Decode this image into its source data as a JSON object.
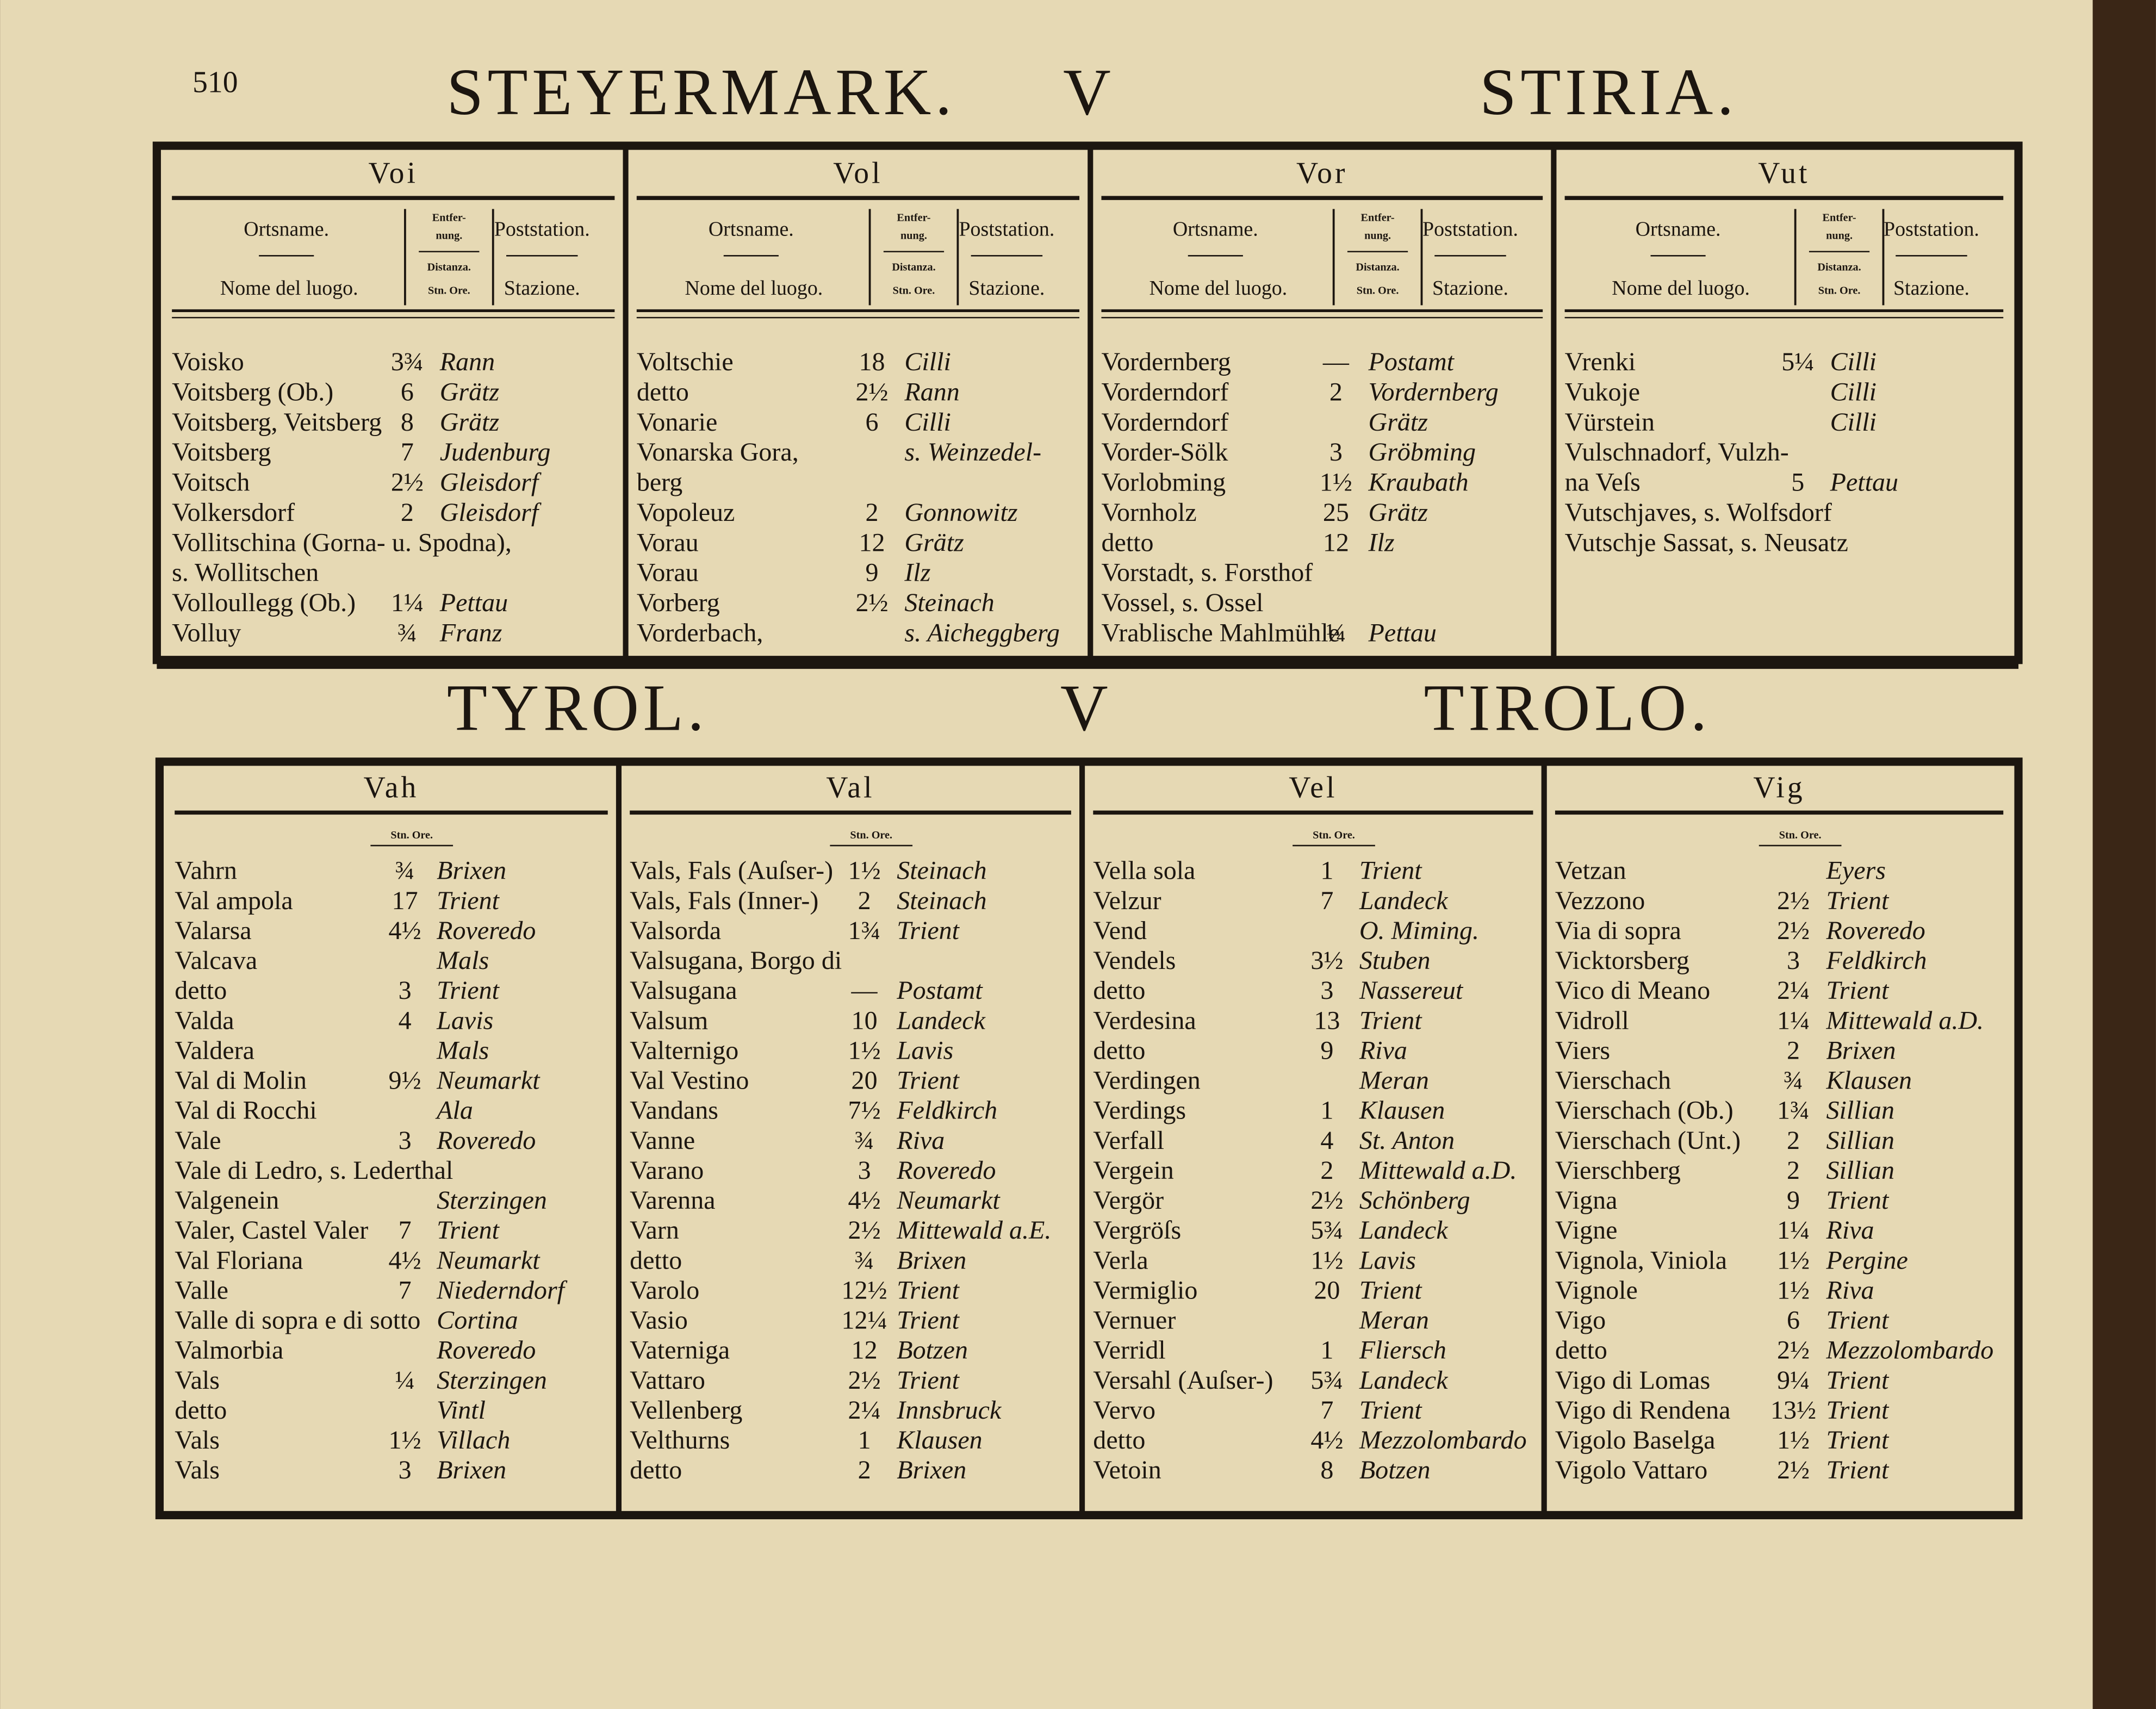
{
  "page_number": "510",
  "top": {
    "title": {
      "left": "STEYERMARK.",
      "middle": "V",
      "right": "STIRIA."
    },
    "headers": {
      "name_de": "Ortsname.",
      "name_it": "Nome del luogo.",
      "dist_de": [
        "Entfer-",
        "nung."
      ],
      "dist_it": "Distanza.",
      "units": "Stn. Ore.",
      "station_de": "Poststation.",
      "station_it": "Stazione."
    },
    "columns": [
      {
        "label": "Voi",
        "rows": [
          {
            "name": "Voisko",
            "dist": "3¾",
            "station": "Rann"
          },
          {
            "name": "Voitsberg (Ob.)",
            "dist": "6",
            "station": "Grätz"
          },
          {
            "name": "Voitsberg, Veitsberg",
            "dist": "8",
            "station": "Grätz"
          },
          {
            "name": "Voitsberg",
            "dist": "7",
            "station": "Judenburg"
          },
          {
            "name": "Voitsch",
            "dist": "2½",
            "station": "Gleisdorf"
          },
          {
            "name": "Volkersdorf",
            "dist": "2",
            "station": "Gleisdorf"
          },
          {
            "name": "Vollitschina (Gorna- u. Spodna),"
          },
          {
            "note": "s. Wollitschen"
          },
          {
            "name": "Volloullegg (Ob.)",
            "dist": "1¼",
            "station": "Pettau"
          },
          {
            "name": "Volluy",
            "dist": "¾",
            "station": "Franz"
          }
        ]
      },
      {
        "label": "Vol",
        "rows": [
          {
            "name": "Voltschie",
            "dist": "18",
            "station": "Cilli"
          },
          {
            "name": "detto",
            "dist": "2½",
            "station": "Rann"
          },
          {
            "name": "Vonarie",
            "dist": "6",
            "station": "Cilli"
          },
          {
            "name": "Vonarska Gora,",
            "station": "s. Weinzedel-"
          },
          {
            "name": "berg"
          },
          {
            "name": "Vopoleuz",
            "dist": "2",
            "station": "Gonnowitz"
          },
          {
            "name": "Vorau",
            "dist": "12",
            "station": "Grätz"
          },
          {
            "name": "Vorau",
            "dist": "9",
            "station": "Ilz"
          },
          {
            "name": "Vorberg",
            "dist": "2½",
            "station": "Steinach"
          },
          {
            "name": "Vorderbach,",
            "station": "s. Aicheggberg"
          }
        ]
      },
      {
        "label": "Vor",
        "rows": [
          {
            "name": "Vordernberg",
            "dist": "—",
            "station": "Postamt"
          },
          {
            "name": "Vorderndorf",
            "dist": "2",
            "station": "Vordernberg"
          },
          {
            "name": "Vorderndorf",
            "station": "Grätz"
          },
          {
            "name": "Vorder-Sölk",
            "dist": "3",
            "station": "Gröbming"
          },
          {
            "name": "Vorlobming",
            "dist": "1½",
            "station": "Kraubath"
          },
          {
            "name": "Vornholz",
            "dist": "25",
            "station": "Grätz"
          },
          {
            "name": "detto",
            "dist": "12",
            "station": "Ilz"
          },
          {
            "note": "Vorstadt, s. Forsthof"
          },
          {
            "note": "Vossel, s. Ossel"
          },
          {
            "name": "Vrablische Mahlmühle",
            "dist": "¼",
            "station": "Pettau"
          }
        ]
      },
      {
        "label": "Vut",
        "rows": [
          {
            "name": "Vrenki",
            "dist": "5¼",
            "station": "Cilli"
          },
          {
            "name": "Vukoje",
            "station": "Cilli"
          },
          {
            "name": "Vürstein",
            "station": "Cilli"
          },
          {
            "name": "Vulschnadorf, Vulzh-"
          },
          {
            "name": "na Veſs",
            "dist": "5",
            "station": "Pettau"
          },
          {
            "note": "Vutschjaves, s. Wolfsdorf"
          },
          {
            "note": "Vutschje Sassat, s. Neusatz"
          }
        ]
      }
    ]
  },
  "bottom": {
    "title": {
      "left": "TYROL.",
      "middle": "V",
      "right": "TIROLO."
    },
    "headers": {
      "units": "Stn. Ore."
    },
    "columns": [
      {
        "label": "Vah",
        "rows": [
          {
            "name": "Vahrn",
            "dist": "¾",
            "station": "Brixen"
          },
          {
            "name": "Val ampola",
            "dist": "17",
            "station": "Trient"
          },
          {
            "name": "Valarsa",
            "dist": "4½",
            "station": "Roveredo"
          },
          {
            "name": "Valcava",
            "station": "Mals"
          },
          {
            "name": "detto",
            "dist": "3",
            "station": "Trient"
          },
          {
            "name": "Valda",
            "dist": "4",
            "station": "Lavis"
          },
          {
            "name": "Valdera",
            "station": "Mals"
          },
          {
            "name": "Val di Molin",
            "dist": "9½",
            "station": "Neumarkt"
          },
          {
            "name": "Val di Rocchi",
            "station": "Ala"
          },
          {
            "name": "Vale",
            "dist": "3",
            "station": "Roveredo"
          },
          {
            "note": "Vale di Ledro, s. Lederthal"
          },
          {
            "name": "Valgenein",
            "station": "Sterzingen"
          },
          {
            "name": "Valer, Castel Valer",
            "dist": "7",
            "station": "Trient"
          },
          {
            "name": "Val Floriana",
            "dist": "4½",
            "station": "Neumarkt"
          },
          {
            "name": "Valle",
            "dist": "7",
            "station": "Niederndorf"
          },
          {
            "name": "Valle di sopra e di sotto",
            "station": "Cortina"
          },
          {
            "name": "Valmorbia",
            "station": "Roveredo"
          },
          {
            "name": "Vals",
            "dist": "¼",
            "station": "Sterzingen"
          },
          {
            "name": "detto",
            "station": "Vintl"
          },
          {
            "name": "Vals",
            "dist": "1½",
            "station": "Villach"
          },
          {
            "name": "Vals",
            "dist": "3",
            "station": "Brixen"
          }
        ]
      },
      {
        "label": "Val",
        "rows": [
          {
            "name": "Vals, Fals (Auſser-)",
            "dist": "1½",
            "station": "Steinach"
          },
          {
            "name": "Vals, Fals (Inner-)",
            "dist": "2",
            "station": "Steinach"
          },
          {
            "name": "Valsorda",
            "dist": "1¾",
            "station": "Trient"
          },
          {
            "name": "Valsugana, Borgo di"
          },
          {
            "name": "Valsugana",
            "dist": "—",
            "station": "Postamt"
          },
          {
            "name": "Valsum",
            "dist": "10",
            "station": "Landeck"
          },
          {
            "name": "Valternigo",
            "dist": "1½",
            "station": "Lavis"
          },
          {
            "name": "Val Vestino",
            "dist": "20",
            "station": "Trient"
          },
          {
            "name": "Vandans",
            "dist": "7½",
            "station": "Feldkirch"
          },
          {
            "name": "Vanne",
            "dist": "¾",
            "station": "Riva"
          },
          {
            "name": "Varano",
            "dist": "3",
            "station": "Roveredo"
          },
          {
            "name": "Varenna",
            "dist": "4½",
            "station": "Neumarkt"
          },
          {
            "name": "Varn",
            "dist": "2½",
            "station": "Mittewald a.E."
          },
          {
            "name": "detto",
            "dist": "¾",
            "station": "Brixen"
          },
          {
            "name": "Varolo",
            "dist": "12½",
            "station": "Trient"
          },
          {
            "name": "Vasio",
            "dist": "12¼",
            "station": "Trient"
          },
          {
            "name": "Vaterniga",
            "dist": "12",
            "station": "Botzen"
          },
          {
            "name": "Vattaro",
            "dist": "2½",
            "station": "Trient"
          },
          {
            "name": "Vellenberg",
            "dist": "2¼",
            "station": "Innsbruck"
          },
          {
            "name": "Velthurns",
            "dist": "1",
            "station": "Klausen"
          },
          {
            "name": "detto",
            "dist": "2",
            "station": "Brixen"
          }
        ]
      },
      {
        "label": "Vel",
        "rows": [
          {
            "name": "Vella sola",
            "dist": "1",
            "station": "Trient"
          },
          {
            "name": "Velzur",
            "dist": "7",
            "station": "Landeck"
          },
          {
            "name": "Vend",
            "station": "O. Miming."
          },
          {
            "name": "Vendels",
            "dist": "3½",
            "station": "Stuben"
          },
          {
            "name": "detto",
            "dist": "3",
            "station": "Nassereut"
          },
          {
            "name": "Verdesina",
            "dist": "13",
            "station": "Trient"
          },
          {
            "name": "detto",
            "dist": "9",
            "station": "Riva"
          },
          {
            "name": "Verdingen",
            "station": "Meran"
          },
          {
            "name": "Verdings",
            "dist": "1",
            "station": "Klausen"
          },
          {
            "name": "Verfall",
            "dist": "4",
            "station": "St. Anton"
          },
          {
            "name": "Vergein",
            "dist": "2",
            "station": "Mittewald a.D."
          },
          {
            "name": "Vergör",
            "dist": "2½",
            "station": "Schönberg"
          },
          {
            "name": "Vergröſs",
            "dist": "5¾",
            "station": "Landeck"
          },
          {
            "name": "Verla",
            "dist": "1½",
            "station": "Lavis"
          },
          {
            "name": "Vermiglio",
            "dist": "20",
            "station": "Trient"
          },
          {
            "name": "Vernuer",
            "station": "Meran"
          },
          {
            "name": "Verridl",
            "dist": "1",
            "station": "Fliersch"
          },
          {
            "name": "Versahl (Auſser-)",
            "dist": "5¾",
            "station": "Landeck"
          },
          {
            "name": "Vervo",
            "dist": "7",
            "station": "Trient"
          },
          {
            "name": "detto",
            "dist": "4½",
            "station": "Mezzolombardo"
          },
          {
            "name": "Vetoin",
            "dist": "8",
            "station": "Botzen"
          }
        ]
      },
      {
        "label": "Vig",
        "rows": [
          {
            "name": "Vetzan",
            "station": "Eyers"
          },
          {
            "name": "Vezzono",
            "dist": "2½",
            "station": "Trient"
          },
          {
            "name": "Via di sopra",
            "dist": "2½",
            "station": "Roveredo"
          },
          {
            "name": "Vicktorsberg",
            "dist": "3",
            "station": "Feldkirch"
          },
          {
            "name": "Vico di Meano",
            "dist": "2¼",
            "station": "Trient"
          },
          {
            "name": "Vidroll",
            "dist": "1¼",
            "station": "Mittewald a.D."
          },
          {
            "name": "Viers",
            "dist": "2",
            "station": "Brixen"
          },
          {
            "name": "Vierschach",
            "dist": "¾",
            "station": "Klausen"
          },
          {
            "name": "Vierschach (Ob.)",
            "dist": "1¾",
            "station": "Sillian"
          },
          {
            "name": "Vierschach (Unt.)",
            "dist": "2",
            "station": "Sillian"
          },
          {
            "name": "Vierschberg",
            "dist": "2",
            "station": "Sillian"
          },
          {
            "name": "Vigna",
            "dist": "9",
            "station": "Trient"
          },
          {
            "name": "Vigne",
            "dist": "1¼",
            "station": "Riva"
          },
          {
            "name": "Vignola, Viniola",
            "dist": "1½",
            "station": "Pergine"
          },
          {
            "name": "Vignole",
            "dist": "1½",
            "station": "Riva"
          },
          {
            "name": "Vigo",
            "dist": "6",
            "station": "Trient"
          },
          {
            "name": "detto",
            "dist": "2½",
            "station": "Mezzolombardo"
          },
          {
            "name": "Vigo di Lomas",
            "dist": "9¼",
            "station": "Trient"
          },
          {
            "name": "Vigo di Rendena",
            "dist": "13½",
            "station": "Trient"
          },
          {
            "name": "Vigolo Baselga",
            "dist": "1½",
            "station": "Trient"
          },
          {
            "name": "Vigolo Vattaro",
            "dist": "2½",
            "station": "Trient"
          }
        ]
      }
    ]
  }
}
